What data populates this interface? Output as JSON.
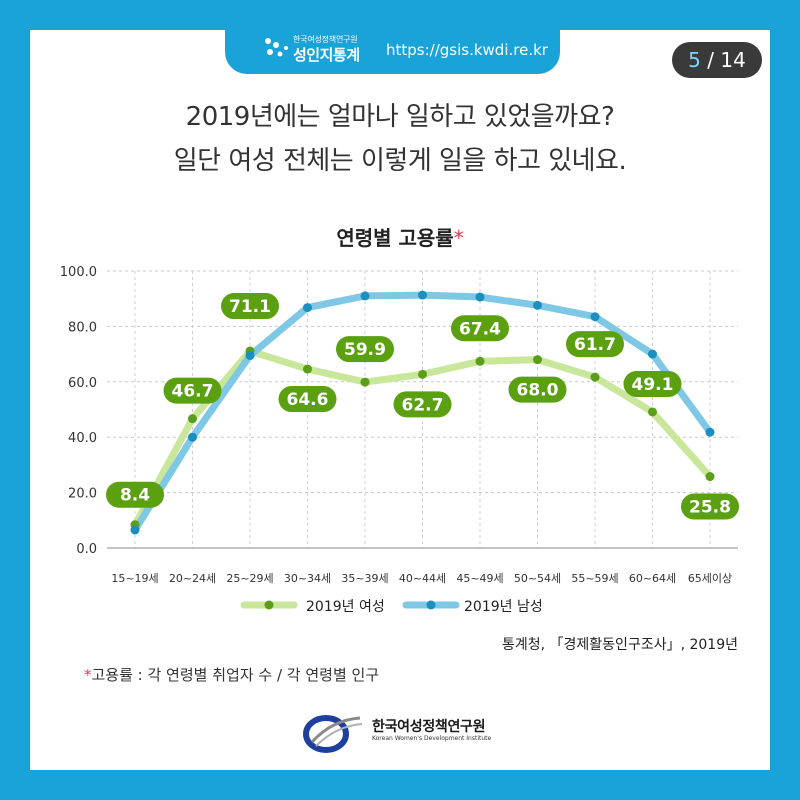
{
  "header": {
    "org_small": "한국여성정책연구원",
    "service_name": "성인지통계",
    "url": "https://gsis.kwdi.re.kr"
  },
  "pager": {
    "current": "5",
    "separator": " / ",
    "total": "14"
  },
  "headline": {
    "line1": "2019년에는 얼마나 일하고 있었을까요?",
    "line2": "일단 여성 전체는 이렇게 일을 하고 있네요."
  },
  "chart_title": {
    "text": "연령별 고용률",
    "mark": "*"
  },
  "chart_data": {
    "type": "line",
    "title": "연령별 고용률*",
    "categories": [
      "15~19세",
      "20~24세",
      "25~29세",
      "30~34세",
      "35~39세",
      "40~44세",
      "45~49세",
      "50~54세",
      "55~59세",
      "60~64세",
      "65세이상"
    ],
    "yticks": [
      "0.0",
      "20.0",
      "40.0",
      "60.0",
      "80.0",
      "100.0"
    ],
    "ylim": [
      0,
      100
    ],
    "grid": true,
    "legend_position": "bottom",
    "series": [
      {
        "name": "2019년 여성",
        "color": "#c9e79a",
        "marker_color": "#5a9e1a",
        "label_color": "#5aa010",
        "values": [
          8.4,
          46.7,
          71.1,
          64.6,
          59.9,
          62.7,
          67.4,
          68.0,
          61.7,
          49.1,
          25.8
        ],
        "labels": [
          "8.4",
          "46.7",
          "71.1",
          "64.6",
          "59.9",
          "62.7",
          "67.4",
          "68.0",
          "61.7",
          "49.1",
          "25.8"
        ]
      },
      {
        "name": "2019년 남성",
        "color": "#7ec8e6",
        "marker_color": "#1a8fc0",
        "values": [
          6.5,
          40.0,
          69.5,
          86.8,
          91.0,
          91.3,
          90.6,
          87.6,
          83.5,
          70.0,
          41.8
        ]
      }
    ]
  },
  "source": "통계청, 「경제활동인구조사」, 2019년",
  "footnote": {
    "mark": "*",
    "text": "고용률 : 각 연령별 취업자 수 / 각 연령별 인구"
  },
  "footer": {
    "org_name": "한국여성정책연구원",
    "org_name_en": "Korean Women's Development Institute"
  }
}
